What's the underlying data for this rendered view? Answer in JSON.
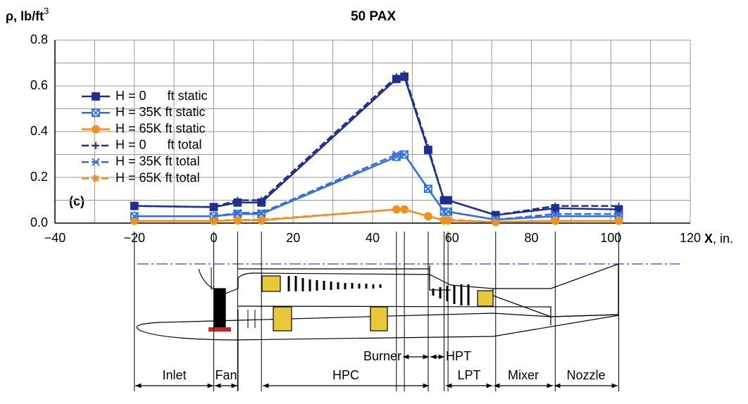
{
  "chart_data": {
    "type": "line",
    "title": "50 PAX",
    "y_label": "ρ, lb/ft",
    "y_label_sup": "3",
    "x_label_symbol": "X",
    "x_label_unit": ", in.",
    "annotation": "(c)",
    "x": [
      -20,
      0,
      6,
      12,
      46,
      48,
      54,
      58,
      59,
      71,
      86,
      102
    ],
    "xlim": [
      -40,
      120
    ],
    "xticks": [
      {
        "value": -40,
        "label": "−40"
      },
      {
        "value": -20,
        "label": "−20"
      },
      0,
      20,
      40,
      60,
      80,
      100,
      120
    ],
    "ylim": [
      0,
      0.8
    ],
    "yticks": [
      {
        "value": 0,
        "label": "0.0"
      },
      0.2,
      0.4,
      0.6,
      0.8
    ],
    "grid": true,
    "legend": "upper left",
    "series": [
      {
        "name": "H = 0      ft static",
        "color": "#1f2f8f",
        "marker": "filled-square",
        "dash": false,
        "values": [
          0.075,
          0.07,
          0.09,
          0.09,
          0.63,
          0.64,
          0.32,
          0.1,
          0.1,
          0.035,
          0.065,
          0.06
        ]
      },
      {
        "name": "H = 35K ft static",
        "color": "#2f6fe0",
        "marker": "open-square",
        "dash": false,
        "values": [
          0.03,
          0.03,
          0.04,
          0.04,
          0.29,
          0.3,
          0.15,
          0.05,
          0.05,
          0.015,
          0.03,
          0.03
        ]
      },
      {
        "name": "H = 65K ft static",
        "color": "#f0901e",
        "marker": "circle",
        "dash": false,
        "values": [
          0.01,
          0.01,
          0.012,
          0.012,
          0.06,
          0.06,
          0.03,
          0.012,
          0.012,
          0.005,
          0.01,
          0.01
        ]
      },
      {
        "name": "H = 0      ft total",
        "color": "#1f2f8f",
        "marker": "plus",
        "dash": true,
        "values": [
          0.075,
          0.07,
          0.1,
          0.1,
          0.64,
          0.65,
          0.33,
          0.1,
          0.1,
          0.035,
          0.075,
          0.075
        ]
      },
      {
        "name": "H = 35K ft total",
        "color": "#2f6fe0",
        "marker": "cross",
        "dash": true,
        "values": [
          0.03,
          0.03,
          0.045,
          0.045,
          0.3,
          0.3,
          0.15,
          0.05,
          0.05,
          0.015,
          0.04,
          0.04
        ]
      },
      {
        "name": "H = 65K ft total",
        "color": "#f0901e",
        "marker": "star",
        "dash": true,
        "values": [
          0.01,
          0.01,
          0.015,
          0.015,
          0.06,
          0.06,
          0.03,
          0.015,
          0.015,
          0.005,
          0.01,
          0.01
        ]
      }
    ]
  },
  "diagram": {
    "sections": [
      "Inlet",
      "Fan",
      "HPC",
      "LPT",
      "Mixer",
      "Nozzle"
    ],
    "callouts": [
      "Burner",
      "HPT"
    ]
  }
}
